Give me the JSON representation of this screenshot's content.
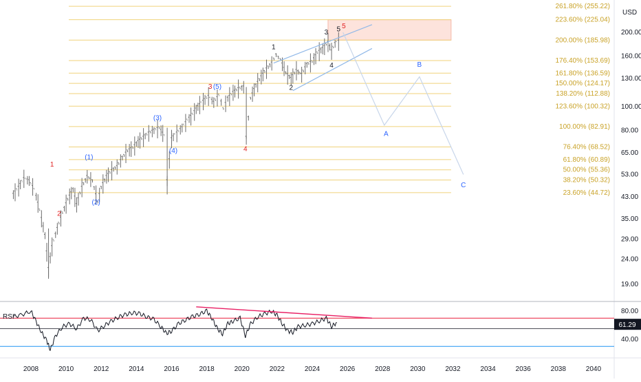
{
  "currency_label": "USD",
  "rsi_label": "RSI",
  "rsi_value_badge": "61.29",
  "colors": {
    "price_bars": "#6b6b6b",
    "fib_lines": "#f0d27a",
    "fib_text": "#c9a227",
    "channel": "#90b8e8",
    "projection": "#c8d6ea",
    "target_zone_fill": "#fde3dc",
    "target_zone_stroke": "#f5b8a8",
    "wave_red": "#e02020",
    "wave_blue": "#2962ff",
    "wave_black": "#131722",
    "rsi_line": "#131722",
    "rsi_upper": "#e91e3a",
    "rsi_lower": "#2196f3",
    "rsi_trend": "#e91e63",
    "axis_text": "#131722"
  },
  "chart_data": [
    {
      "type": "line",
      "scale": "log",
      "description_note": "",
      "x_axis": {
        "tick_labels": [
          "2008",
          "2010",
          "2012",
          "2014",
          "2016",
          "2018",
          "2020",
          "2022",
          "2024",
          "2026",
          "2028",
          "2030",
          "2032",
          "2034",
          "2036",
          "2038",
          "2040"
        ],
        "xlim": [
          2007.0,
          2041.0
        ]
      },
      "y_axis": {
        "tick_labels": [
          "200.00",
          "160.00",
          "130.00",
          "100.00",
          "80.00",
          "65.00",
          "53.00",
          "43.00",
          "35.00",
          "29.00",
          "24.00",
          "19.00"
        ],
        "ylim": [
          16.0,
          280.0
        ],
        "unit": "USD"
      },
      "price_series": {
        "x": [
          2007.0,
          2007.3,
          2007.6,
          2007.9,
          2008.2,
          2008.5,
          2008.8,
          2009.0,
          2009.2,
          2009.5,
          2009.8,
          2010.1,
          2010.4,
          2010.6,
          2010.9,
          2011.2,
          2011.5,
          2011.8,
          2012.0,
          2012.3,
          2012.6,
          2012.9,
          2013.2,
          2013.5,
          2013.8,
          2014.1,
          2014.4,
          2014.7,
          2015.0,
          2015.3,
          2015.6,
          2015.75,
          2016.0,
          2016.3,
          2016.6,
          2016.9,
          2017.2,
          2017.5,
          2017.8,
          2018.1,
          2018.4,
          2018.7,
          2018.95,
          2019.2,
          2019.5,
          2019.8,
          2020.1,
          2020.25,
          2020.5,
          2020.8,
          2021.1,
          2021.4,
          2021.7,
          2021.95,
          2022.2,
          2022.5,
          2022.8,
          2023.1,
          2023.4,
          2023.7,
          2024.0,
          2024.3,
          2024.6,
          2024.9,
          2025.1,
          2025.3,
          2025.6
        ],
        "y": [
          44,
          47,
          51,
          50,
          46,
          38,
          30,
          22,
          27,
          32,
          37,
          42,
          46,
          40,
          47,
          52,
          50,
          41,
          47,
          52,
          55,
          57,
          62,
          66,
          68,
          72,
          75,
          78,
          80,
          82,
          76,
          50,
          74,
          78,
          82,
          88,
          93,
          100,
          105,
          110,
          104,
          111,
          98,
          108,
          114,
          118,
          120,
          75,
          108,
          122,
          132,
          142,
          150,
          162,
          155,
          137,
          130,
          140,
          135,
          148,
          152,
          165,
          172,
          182,
          168,
          180,
          186
        ]
      },
      "fib_levels": [
        {
          "label": "261.80% (255.22)",
          "value": 255.22
        },
        {
          "label": "223.60% (225.04)",
          "value": 225.04
        },
        {
          "label": "200.00% (185.98)",
          "value": 185.98
        },
        {
          "label": "176.40% (153.69)",
          "value": 153.69
        },
        {
          "label": "161.80% (136.59)",
          "value": 136.59
        },
        {
          "label": "150.00% (124.17)",
          "value": 124.17
        },
        {
          "label": "138.20% (112.88)",
          "value": 112.88
        },
        {
          "label": "123.60% (100.32)",
          "value": 100.32
        },
        {
          "label": "100.00% (82.91)",
          "value": 82.91
        },
        {
          "label": "76.40% (68.52)",
          "value": 68.52
        },
        {
          "label": "61.80% (60.89)",
          "value": 60.89
        },
        {
          "label": "50.00% (55.36)",
          "value": 55.36
        },
        {
          "label": "38.20% (50.32)",
          "value": 50.32
        },
        {
          "label": "23.60% (44.72)",
          "value": 44.72
        }
      ],
      "target_zone": {
        "x_start": 2024.9,
        "x_end": 2031.9,
        "y_low": 185.98,
        "y_high": 225.04
      },
      "channel_lines": [
        {
          "x": [
            2021.8,
            2027.4
          ],
          "y": [
            150,
            215
          ]
        },
        {
          "x": [
            2022.9,
            2027.4
          ],
          "y": [
            116,
            172
          ]
        }
      ],
      "projection_path": {
        "x": [
          2025.75,
          2028.1,
          2030.1,
          2032.6
        ],
        "y": [
          200,
          84,
          132,
          53
        ]
      },
      "wave_labels": [
        {
          "text": "1",
          "x": 2009.2,
          "y": 57,
          "color": "red"
        },
        {
          "text": "2",
          "x": 2009.6,
          "y": 36,
          "color": "red"
        },
        {
          "text": "3",
          "x": 2018.2,
          "y": 118,
          "color": "red"
        },
        {
          "text": "4",
          "x": 2020.2,
          "y": 66,
          "color": "red"
        },
        {
          "text": "5",
          "x": 2025.8,
          "y": 208,
          "color": "red"
        },
        {
          "text": "(1)",
          "x": 2011.3,
          "y": 61,
          "color": "blue"
        },
        {
          "text": "(2)",
          "x": 2011.7,
          "y": 40,
          "color": "blue"
        },
        {
          "text": "(3)",
          "x": 2015.2,
          "y": 88,
          "color": "blue"
        },
        {
          "text": "(4)",
          "x": 2016.1,
          "y": 65,
          "color": "blue"
        },
        {
          "text": "(5)",
          "x": 2018.6,
          "y": 118,
          "color": "blue"
        },
        {
          "text": "1",
          "x": 2021.8,
          "y": 171,
          "color": "black"
        },
        {
          "text": "2",
          "x": 2022.8,
          "y": 117,
          "color": "black"
        },
        {
          "text": "3",
          "x": 2024.8,
          "y": 196,
          "color": "black"
        },
        {
          "text": "4",
          "x": 2025.1,
          "y": 144,
          "color": "black"
        },
        {
          "text": "5",
          "x": 2025.5,
          "y": 202,
          "color": "black"
        },
        {
          "text": "A",
          "x": 2028.2,
          "y": 76,
          "color": "blue"
        },
        {
          "text": "B",
          "x": 2030.1,
          "y": 145,
          "color": "blue"
        },
        {
          "text": "C",
          "x": 2032.6,
          "y": 47,
          "color": "blue"
        }
      ]
    },
    {
      "type": "line",
      "title": "RSI",
      "y_axis": {
        "tick_labels": [
          "80.00",
          "40.00"
        ],
        "ylim": [
          20,
          90
        ]
      },
      "levels": {
        "upper": 70,
        "lower": 30
      },
      "current_value": 61.29,
      "rsi_series": {
        "x": [
          2007.0,
          2007.5,
          2008.0,
          2008.3,
          2008.6,
          2008.9,
          2009.1,
          2009.4,
          2009.8,
          2010.2,
          2010.6,
          2011.0,
          2011.4,
          2011.8,
          2012.2,
          2012.6,
          2013.0,
          2013.4,
          2013.8,
          2014.2,
          2014.6,
          2015.0,
          2015.4,
          2015.7,
          2016.0,
          2016.4,
          2016.8,
          2017.2,
          2017.6,
          2018.0,
          2018.3,
          2018.6,
          2018.9,
          2019.2,
          2019.5,
          2019.9,
          2020.2,
          2020.5,
          2020.9,
          2021.3,
          2021.7,
          2022.0,
          2022.3,
          2022.6,
          2022.9,
          2023.2,
          2023.6,
          2024.0,
          2024.4,
          2024.8,
          2025.1,
          2025.4
        ],
        "y": [
          72,
          75,
          80,
          65,
          50,
          38,
          25,
          45,
          58,
          62,
          55,
          70,
          68,
          52,
          60,
          66,
          72,
          75,
          78,
          76,
          72,
          68,
          58,
          48,
          52,
          62,
          68,
          72,
          76,
          80,
          70,
          55,
          48,
          62,
          66,
          70,
          45,
          62,
          72,
          76,
          80,
          74,
          62,
          52,
          50,
          58,
          60,
          62,
          66,
          70,
          58,
          64
        ]
      },
      "trendline": {
        "x": [
          2017.4,
          2027.4
        ],
        "y": [
          86,
          70
        ]
      }
    }
  ]
}
